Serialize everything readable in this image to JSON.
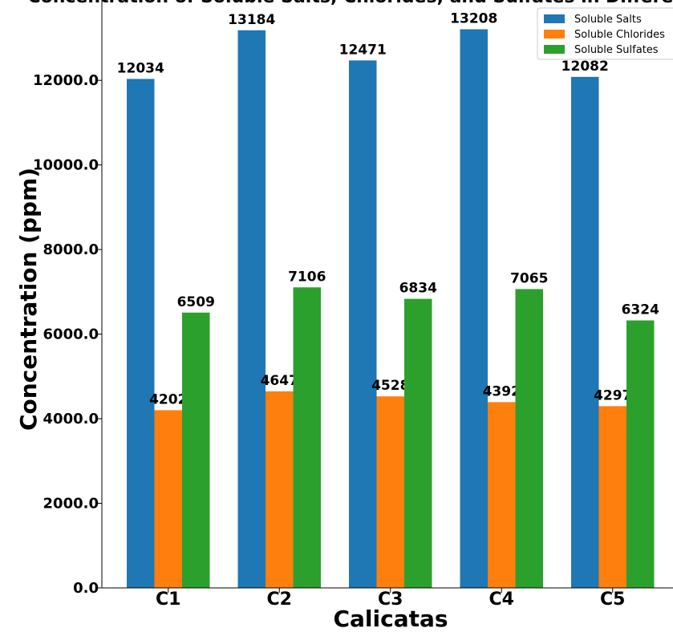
{
  "chart_data": {
    "type": "bar",
    "title": "Concentration of Soluble Salts, Chlorides, and Sulfates in Different",
    "xlabel": "Calicatas",
    "ylabel": "Concentration (ppm)",
    "categories": [
      "C1",
      "C2",
      "C3",
      "C4",
      "C5"
    ],
    "series": [
      {
        "name": "Soluble Salts",
        "color": "#1f77b4",
        "values": [
          12034,
          13184,
          12471,
          13208,
          12082
        ]
      },
      {
        "name": "Soluble Chlorides",
        "color": "#ff7f0e",
        "values": [
          4202,
          4647,
          4528,
          4392,
          4297
        ]
      },
      {
        "name": "Soluble Sulfates",
        "color": "#2ca02c",
        "values": [
          6509,
          7106,
          6834,
          7065,
          6324
        ]
      }
    ],
    "ylim": [
      0,
      13900
    ],
    "yticks": [
      "0.0",
      "2000.0",
      "4000.0",
      "6000.0",
      "8000.0",
      "10000.0",
      "12000.0"
    ],
    "grid": false,
    "legend_position": "top-right"
  }
}
